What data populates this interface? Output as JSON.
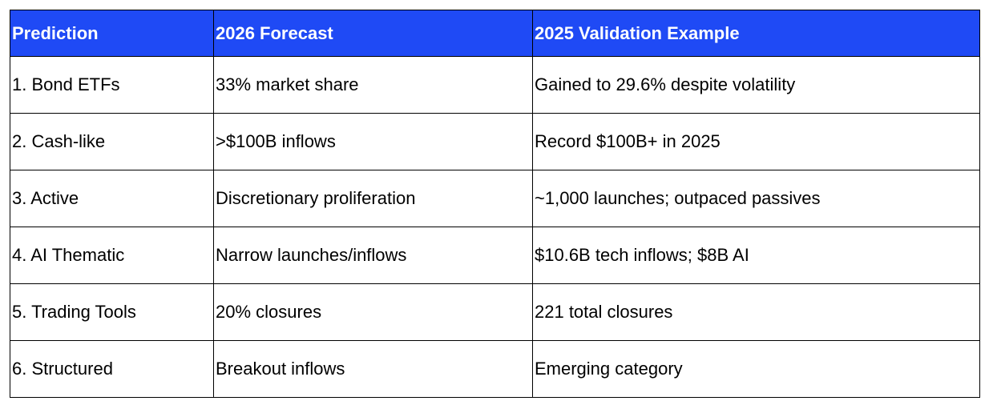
{
  "table": {
    "header_color": "#1f4af5",
    "headers": [
      "Prediction",
      "2026 Forecast",
      "2025 Validation Example"
    ],
    "rows": [
      [
        "1. Bond ETFs",
        "33% market share",
        "Gained to 29.6% despite volatility"
      ],
      [
        "2. Cash-like",
        ">$100B inflows",
        "Record $100B+ in 2025"
      ],
      [
        "3. Active",
        "Discretionary proliferation",
        "~1,000 launches; outpaced passives"
      ],
      [
        "4. AI Thematic",
        "Narrow launches/inflows",
        "$10.6B tech inflows; $8B AI"
      ],
      [
        "5. Trading Tools",
        "20% closures",
        "221 total closures"
      ],
      [
        "6. Structured",
        "Breakout inflows",
        "Emerging category"
      ]
    ]
  }
}
